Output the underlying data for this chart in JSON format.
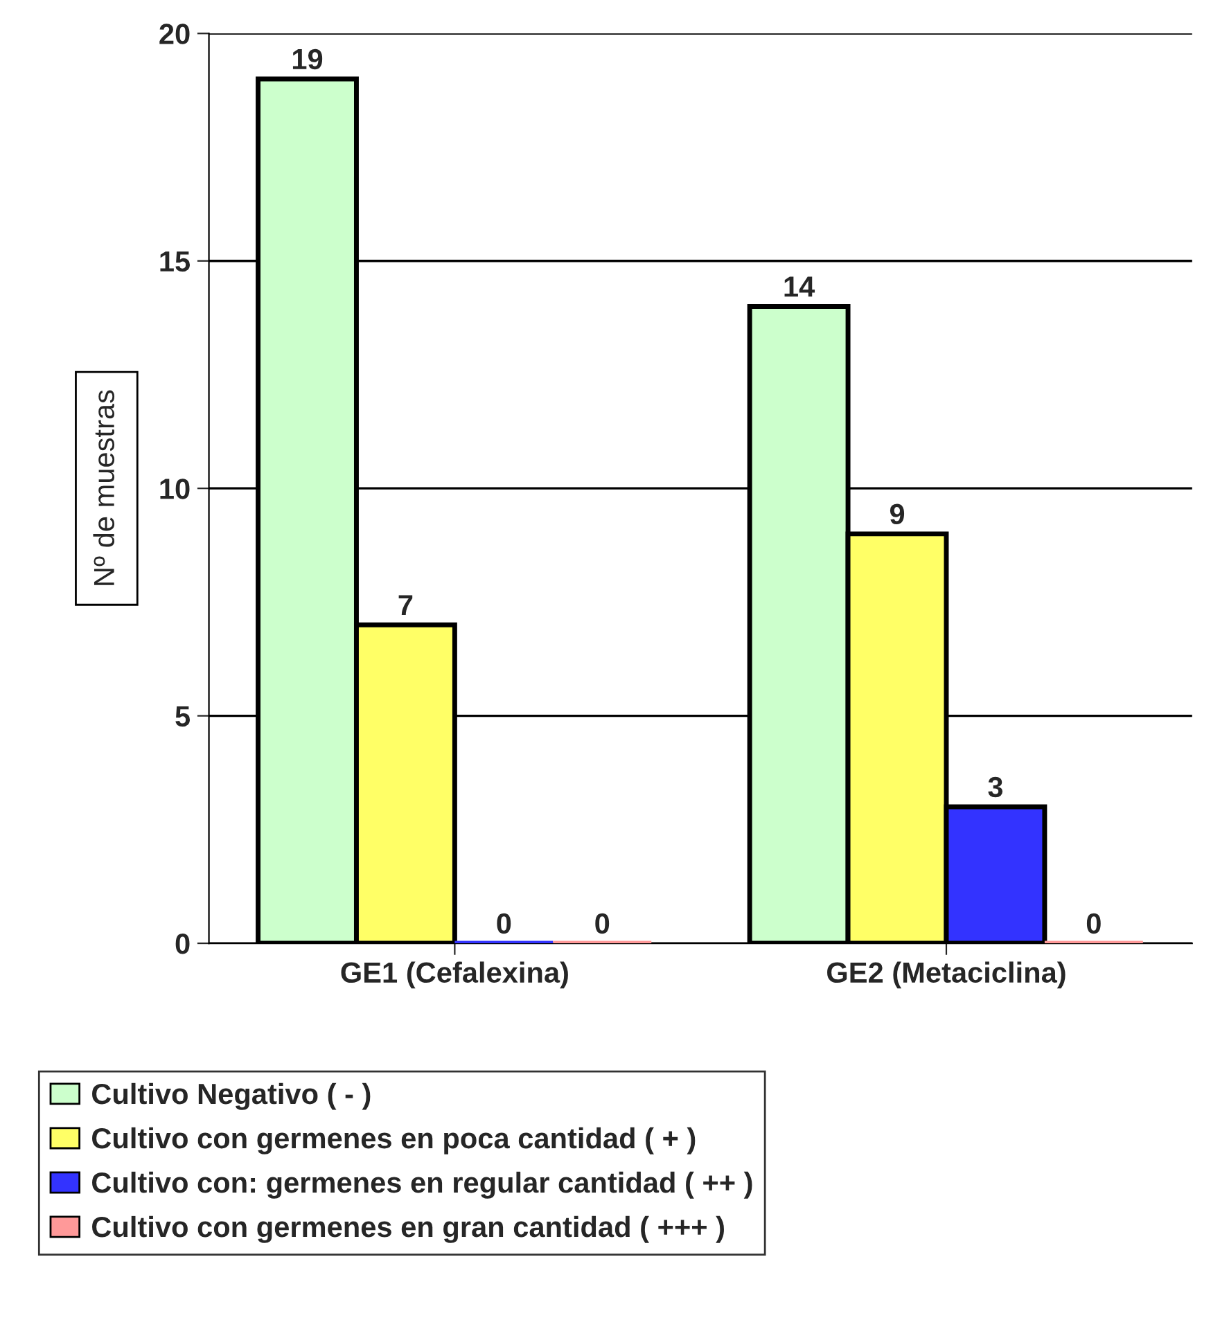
{
  "chart_data": {
    "type": "bar",
    "ylabel": "Nº de muestras",
    "categories": [
      "GE1 (Cefalexina)",
      "GE2 (Metaciclina)"
    ],
    "series": [
      {
        "name": "Cultivo Negativo ( - )",
        "color": "#ccffcc",
        "values": [
          19,
          14
        ]
      },
      {
        "name": "Cultivo con germenes en poca cantidad ( + )",
        "color": "#ffff66",
        "values": [
          7,
          9
        ]
      },
      {
        "name": "Cultivo con: germenes en regular cantidad ( ++ )",
        "color": "#3333ff",
        "values": [
          0,
          3
        ]
      },
      {
        "name": "Cultivo con germenes en gran cantidad ( +++ )",
        "color": "#ff9999",
        "values": [
          0,
          0
        ]
      }
    ],
    "ylim": [
      0,
      20
    ],
    "yticks": [
      0,
      5,
      10,
      15,
      20
    ],
    "grid": "y",
    "legend": "bottom",
    "data_labels": true
  }
}
